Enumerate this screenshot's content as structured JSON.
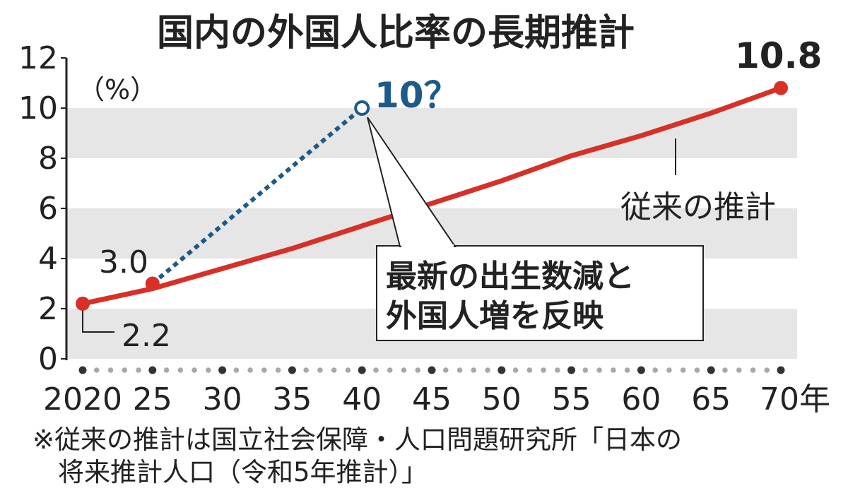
{
  "chart_data": {
    "type": "line",
    "title": "国内の外国人比率の長期推計",
    "ylabel": "（%）",
    "ylim": [
      0,
      12
    ],
    "yticks": [
      "0",
      "2",
      "4",
      "6",
      "8",
      "10",
      "12"
    ],
    "xlim": [
      2020,
      2070
    ],
    "xticks": [
      {
        "year": 2020,
        "label": "2020"
      },
      {
        "year": 2025,
        "label": "25"
      },
      {
        "year": 2030,
        "label": "30"
      },
      {
        "year": 2035,
        "label": "35"
      },
      {
        "year": 2040,
        "label": "40"
      },
      {
        "year": 2045,
        "label": "45"
      },
      {
        "year": 2050,
        "label": "50"
      },
      {
        "year": 2055,
        "label": "55"
      },
      {
        "year": 2060,
        "label": "60"
      },
      {
        "year": 2065,
        "label": "65"
      },
      {
        "year": 2070,
        "label": "70年"
      }
    ],
    "series": [
      {
        "name": "従来の推計",
        "color": "#d73027",
        "x": [
          2020,
          2025,
          2030,
          2035,
          2040,
          2045,
          2050,
          2055,
          2060,
          2065,
          2070
        ],
        "y": [
          2.2,
          2.8,
          3.6,
          4.4,
          5.3,
          6.2,
          7.1,
          8.1,
          8.9,
          9.8,
          10.8
        ]
      },
      {
        "name": "最新の出生数減と外国人増を反映",
        "color": "#1d5a8a",
        "x": [
          2025,
          2040
        ],
        "y": [
          3.0,
          10.0
        ]
      }
    ],
    "annotations": {
      "start_value": "2.2",
      "marker_value": "3.0",
      "end_value": "10.8",
      "new_projection_value": "10？",
      "series_label": "従来の推計",
      "callout_line1": "最新の出生数減と",
      "callout_line2": "外国人増を反映"
    },
    "grid": "alternating-bands"
  },
  "note": {
    "line1": "※従来の推計は国立社会保障・人口問題研究所「日本の",
    "line2": "将来推計人口（令和5年推計）」"
  },
  "colors": {
    "band": "#e6e6e6",
    "red": "#d73027",
    "blue": "#1d5a8a"
  }
}
